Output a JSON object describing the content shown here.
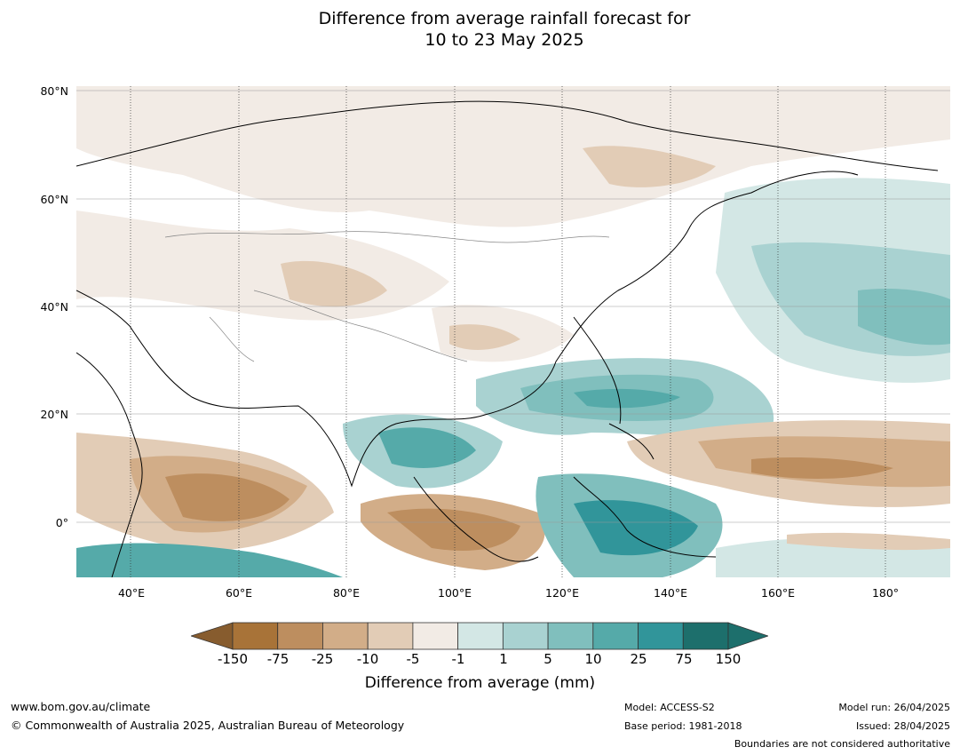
{
  "title_line1": "Difference from average rainfall forecast for",
  "title_line2": "10 to 23 May 2025",
  "lat_labels": [
    "80°N",
    "60°N",
    "40°N",
    "20°N",
    "0°"
  ],
  "lon_labels": [
    "40°E",
    "60°E",
    "80°E",
    "100°E",
    "120°E",
    "140°E",
    "160°E",
    "180°"
  ],
  "colorbar": {
    "ticks": [
      "-150",
      "-75",
      "-25",
      "-10",
      "-5",
      "-1",
      "1",
      "5",
      "10",
      "25",
      "75",
      "150"
    ],
    "colors": [
      "#a87338",
      "#bd8e5f",
      "#d2ad88",
      "#e2ccb6",
      "#f2ebe5",
      "#ffffff",
      "#d3e7e5",
      "#a9d2d1",
      "#80bfbd",
      "#55aaa9",
      "#31959a",
      "#1d6f6c"
    ],
    "label": "Difference from average (mm)"
  },
  "footer": {
    "url": "www.bom.gov.au/climate",
    "copyright": "© Commonwealth of Australia 2025, Australian Bureau of Meteorology",
    "model": "Model: ACCESS-S2",
    "base_period": "Base period: 1981-2018",
    "model_run": "Model run: 26/04/2025",
    "issued": "Issued: 28/04/2025",
    "disclaimer": "Boundaries are not considered authoritative"
  }
}
